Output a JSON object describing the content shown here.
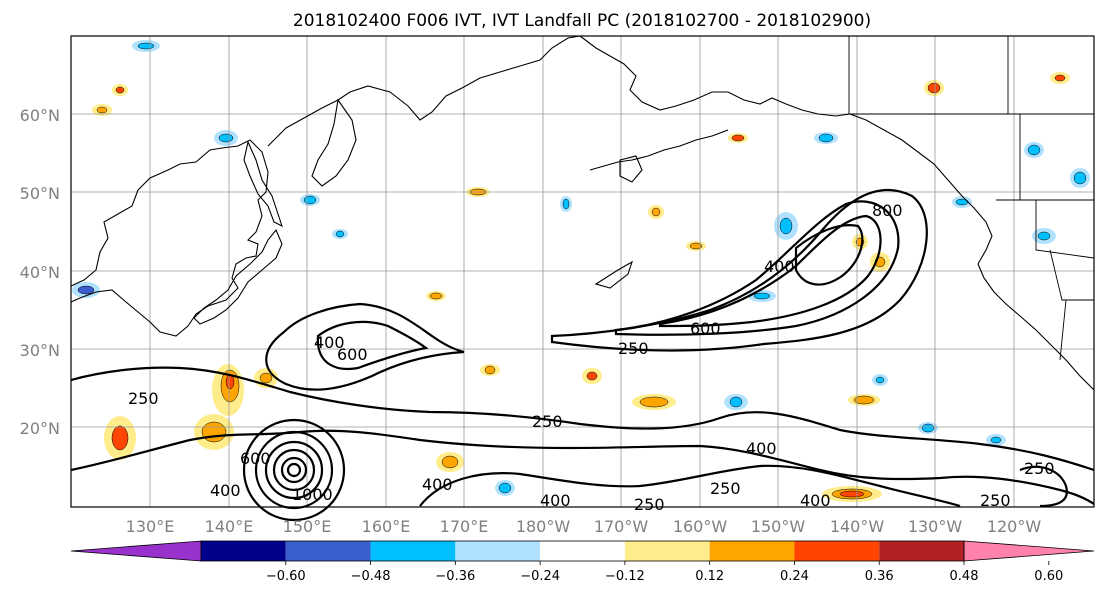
{
  "title": "2018102400 F006 IVT, IVT Landfall PC (2018102700 - 2018102900)",
  "lat_labels": [
    "60°N",
    "50°N",
    "40°N",
    "30°N",
    "20°N"
  ],
  "lon_labels": [
    "130°E",
    "140°E",
    "150°E",
    "160°E",
    "170°E",
    "180°W",
    "170°W",
    "160°W",
    "150°W",
    "140°W",
    "130°W",
    "120°W"
  ],
  "contour_labels": {
    "a": "250",
    "b": "600",
    "c": "400",
    "d": "250",
    "e": "600",
    "f": "400",
    "g": "800",
    "h": "250",
    "i": "400",
    "j": "400",
    "k": "1000",
    "l": "400",
    "m": "250",
    "n": "400",
    "o": "250",
    "p": "400",
    "q": "250",
    "r": "250",
    "s": "600"
  },
  "colorbar": {
    "ticks": [
      "−0.60",
      "−0.48",
      "−0.36",
      "−0.24",
      "−0.12",
      "0.12",
      "0.24",
      "0.36",
      "0.48",
      "0.60"
    ],
    "colors": [
      "#9932cc",
      "#00008b",
      "#3a5fcd",
      "#00bfff",
      "#b0e2ff",
      "#ffffff",
      "#ffec8b",
      "#ffa500",
      "#ff4500",
      "#b22222",
      "#ff82ab"
    ]
  },
  "palette": {
    "pos_light": "#ffec8b",
    "pos_mid": "#ffa500",
    "pos_high": "#ff4500",
    "pos_max": "#b22222",
    "neg_light": "#b0e2ff",
    "neg_mid": "#00bfff",
    "neg_high": "#3a5fcd",
    "neg_max": "#00008b"
  }
}
